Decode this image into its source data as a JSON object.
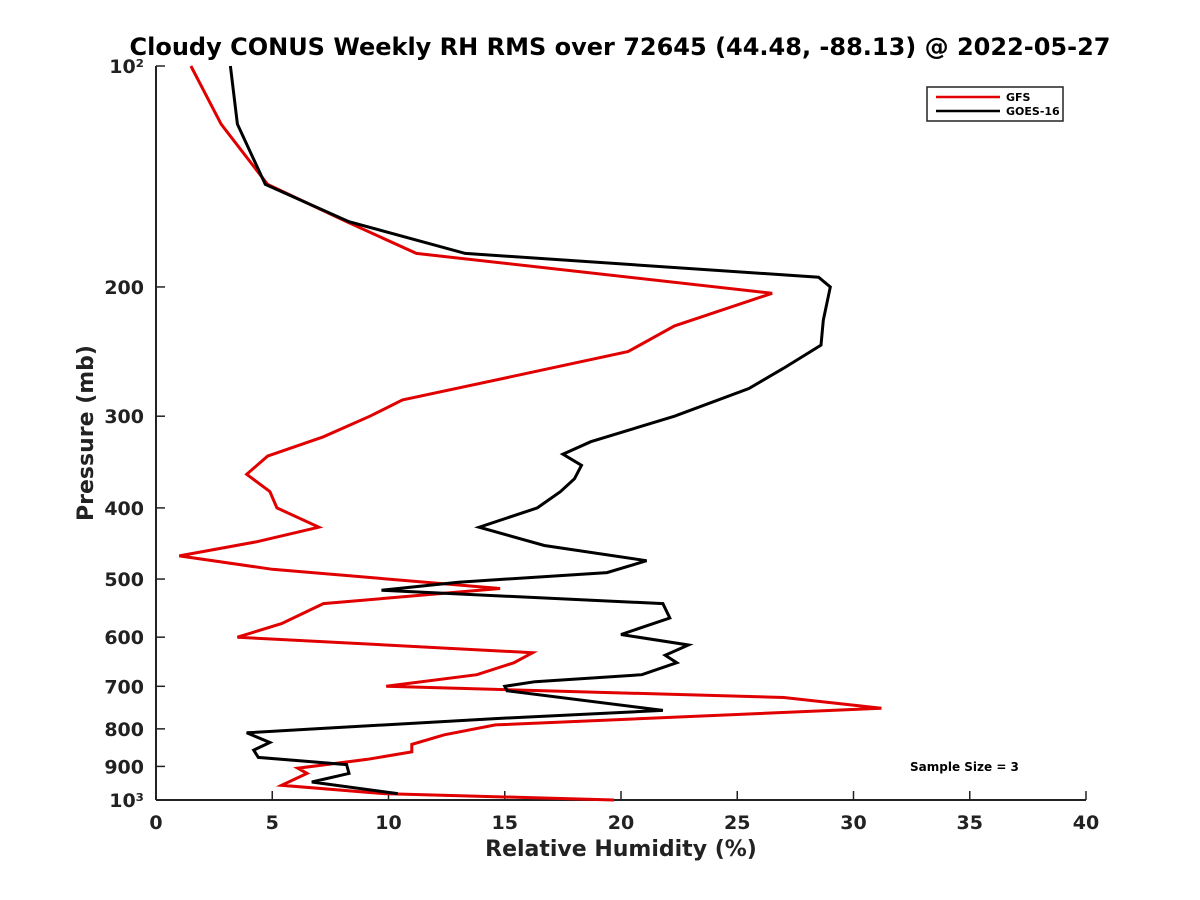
{
  "chart_data": {
    "type": "line",
    "title": "Cloudy CONUS Weekly RH RMS over 72645 (44.48, -88.13) @ 2022-05-27",
    "xlabel": "Relative Humidity (%)",
    "ylabel": "Pressure (mb)",
    "xlim": [
      0,
      40
    ],
    "ylim": [
      100,
      1000
    ],
    "y_scale": "log",
    "y_reversed": true,
    "grid": false,
    "legend_position": "top-right",
    "x_ticks": [
      0,
      5,
      10,
      15,
      20,
      25,
      30,
      35,
      40
    ],
    "x_tick_labels": [
      "0",
      "5",
      "10",
      "15",
      "20",
      "25",
      "30",
      "35",
      "40"
    ],
    "y_ticks": [
      100,
      200,
      300,
      400,
      500,
      600,
      700,
      800,
      900,
      1000
    ],
    "y_tick_labels": [
      "10²",
      "200",
      "300",
      "400",
      "500",
      "600",
      "700",
      "800",
      "900",
      "10³"
    ],
    "series": [
      {
        "name": "GFS",
        "color": "#e00000",
        "x": [
          1.5,
          2.8,
          4.8,
          8.2,
          11.2,
          26.5,
          22.3,
          20.3,
          14.8,
          10.6,
          9.2,
          7.2,
          4.8,
          3.9,
          4.9,
          5.2,
          7.0,
          4.3,
          1.0,
          5.0,
          14.8,
          7.2,
          5.4,
          3.5,
          16.2,
          15.4,
          13.8,
          9.9,
          27.0,
          31.2,
          14.6,
          12.4,
          11.0,
          11.0,
          9.1,
          6.1,
          6.5,
          5.4,
          9.8,
          19.7
        ],
        "y": [
          100,
          120,
          145,
          163,
          180,
          204,
          226,
          245,
          267,
          285,
          300,
          320,
          340,
          360,
          380,
          400,
          425,
          445,
          465,
          485,
          515,
          540,
          575,
          600,
          630,
          650,
          675,
          700,
          725,
          750,
          790,
          815,
          840,
          860,
          880,
          905,
          920,
          955,
          980,
          1000
        ]
      },
      {
        "name": "GOES-16",
        "color": "#000000",
        "x": [
          3.2,
          3.5,
          4.7,
          8.3,
          13.3,
          28.5,
          29.0,
          28.7,
          28.6,
          27.0,
          25.5,
          22.3,
          18.7,
          17.5,
          18.3,
          18.0,
          17.4,
          16.4,
          13.9,
          16.7,
          21.1,
          19.4,
          13.0,
          9.7,
          21.8,
          22.1,
          20.0,
          22.9,
          21.9,
          22.4,
          20.9,
          16.3,
          15.0,
          15.1,
          21.8,
          14.5,
          6.8,
          3.9,
          4.9,
          4.2,
          4.4,
          8.2,
          8.3,
          6.7,
          10.4
        ],
        "y": [
          100,
          120,
          145,
          163,
          180,
          194,
          200,
          222,
          240,
          258,
          275,
          300,
          325,
          338,
          350,
          365,
          380,
          400,
          425,
          450,
          472,
          490,
          505,
          518,
          540,
          565,
          595,
          615,
          635,
          650,
          675,
          690,
          700,
          710,
          755,
          775,
          800,
          810,
          835,
          855,
          875,
          895,
          920,
          945,
          980
        ]
      }
    ],
    "annotations": [
      "Sample Size = 3"
    ]
  }
}
